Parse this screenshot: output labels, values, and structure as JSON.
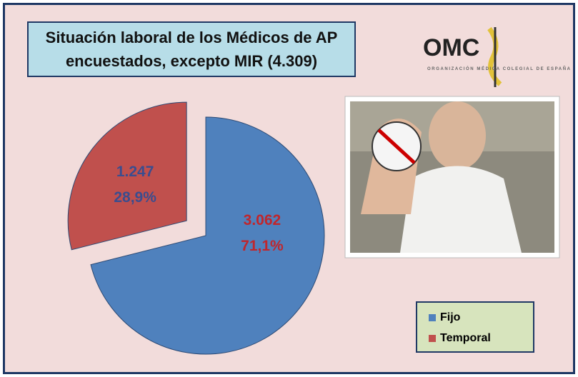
{
  "chart_data": {
    "type": "pie",
    "title": "Situación laboral de los Médicos de AP encuestados, excepto MIR (4.309)",
    "categories": [
      "Fijo",
      "Temporal"
    ],
    "values": [
      3062,
      1247
    ],
    "value_labels": [
      "3.062",
      "1.247"
    ],
    "percentages": [
      71.1,
      28.9
    ],
    "percent_labels": [
      "71,1%",
      "28,9%"
    ],
    "colors": [
      "#4f81bd",
      "#c0504d"
    ],
    "label_colors": [
      "#c0262c",
      "#3a4d8f"
    ],
    "exploded": [
      false,
      true
    ],
    "legend": "bottom-right"
  },
  "logo": {
    "text": "OMC",
    "subtitle": "ORGANIZACIÓN MÉDICA COLEGIAL DE ESPAÑA"
  }
}
